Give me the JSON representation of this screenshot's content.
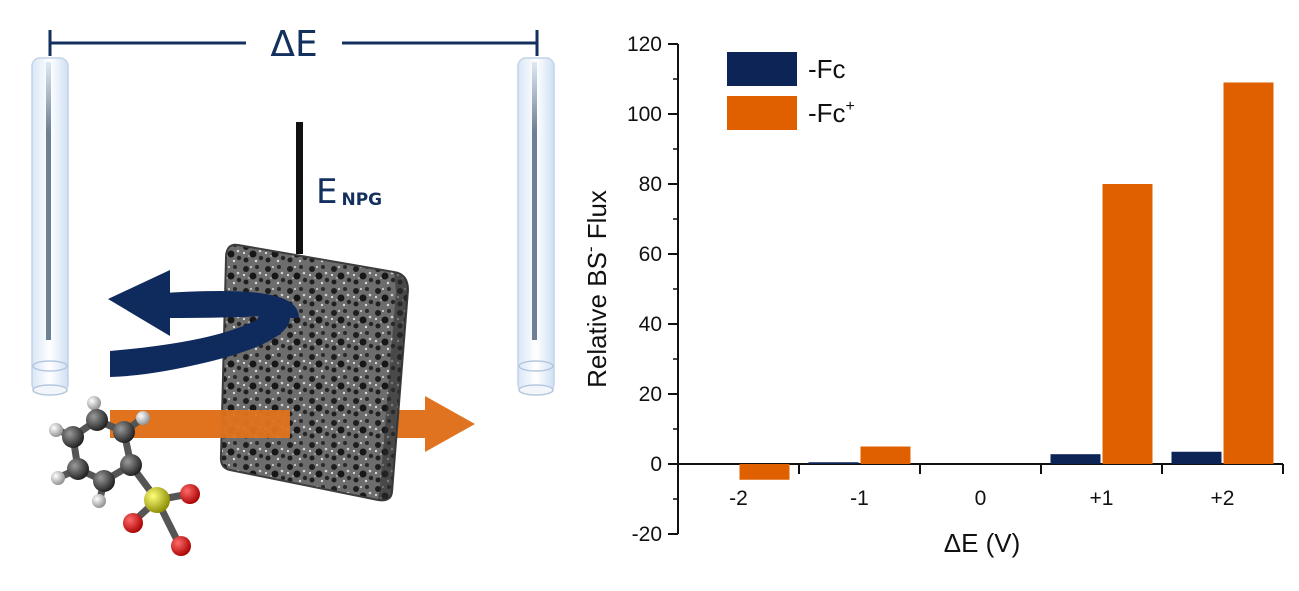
{
  "schematic": {
    "delta_label": "ΔE",
    "electrode_label": "E",
    "electrode_subscript": "NPG",
    "colors": {
      "navy": "#0f2a5c",
      "orange": "#e0731f"
    }
  },
  "chart_data": {
    "type": "bar",
    "categories": [
      "-2",
      "-1",
      "0",
      "+1",
      "+2"
    ],
    "series": [
      {
        "name": "-Fc",
        "values": [
          0,
          0.5,
          0,
          2.8,
          3.5
        ],
        "color": "#0d2456"
      },
      {
        "name": "-Fc",
        "name_sup": "+",
        "values": [
          -4.5,
          5,
          0,
          80,
          109
        ],
        "color": "#e06000"
      }
    ],
    "xlabel": "ΔE (V)",
    "ylabel": "Relative BS",
    "ylabel_sup": "-",
    "ylabel_end": "Flux",
    "ylim": [
      -20,
      120
    ],
    "yticks": [
      -20,
      0,
      20,
      40,
      60,
      80,
      100,
      120
    ],
    "legend_position": "top-left",
    "grid": false
  }
}
